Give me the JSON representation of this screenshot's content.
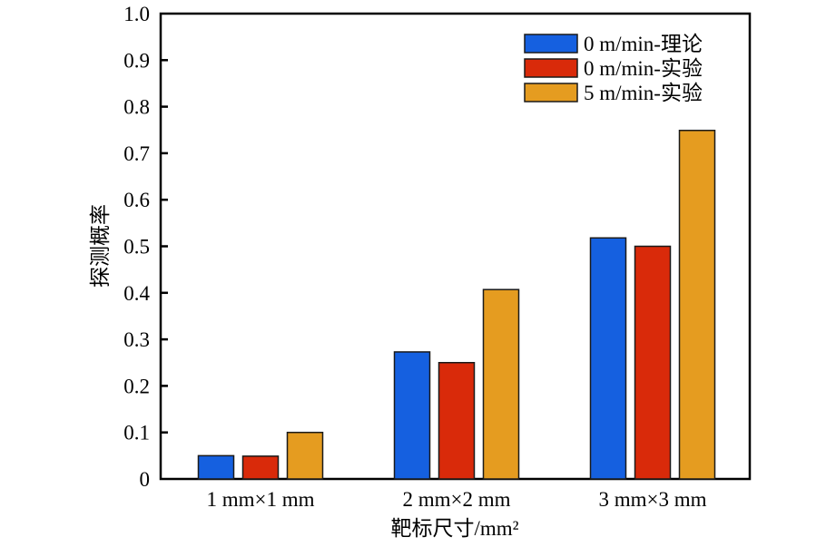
{
  "chart_data": {
    "type": "bar",
    "title": "",
    "xlabel": "靶标尺寸/mm²",
    "ylabel": "探测概率",
    "ylim": [
      0,
      1.0
    ],
    "yticks": [
      0,
      0.1,
      0.2,
      0.3,
      0.4,
      0.5,
      0.6,
      0.7,
      0.8,
      0.9,
      1.0
    ],
    "ytick_labels": [
      "0",
      "0.1",
      "0.2",
      "0.3",
      "0.4",
      "0.5",
      "0.6",
      "0.7",
      "0.8",
      "0.9",
      "1.0"
    ],
    "categories": [
      "1 mm×1 mm",
      "2 mm×2 mm",
      "3 mm×3 mm"
    ],
    "series": [
      {
        "name": "0 m/min-理论",
        "color": "#1560e0",
        "values": [
          0.05,
          0.273,
          0.518
        ]
      },
      {
        "name": "0 m/min-实验",
        "color": "#d92a0a",
        "values": [
          0.049,
          0.25,
          0.5
        ]
      },
      {
        "name": "5 m/min-实验",
        "color": "#e59c20",
        "values": [
          0.1,
          0.407,
          0.749
        ]
      }
    ],
    "legend": "top-right",
    "grid": false
  }
}
